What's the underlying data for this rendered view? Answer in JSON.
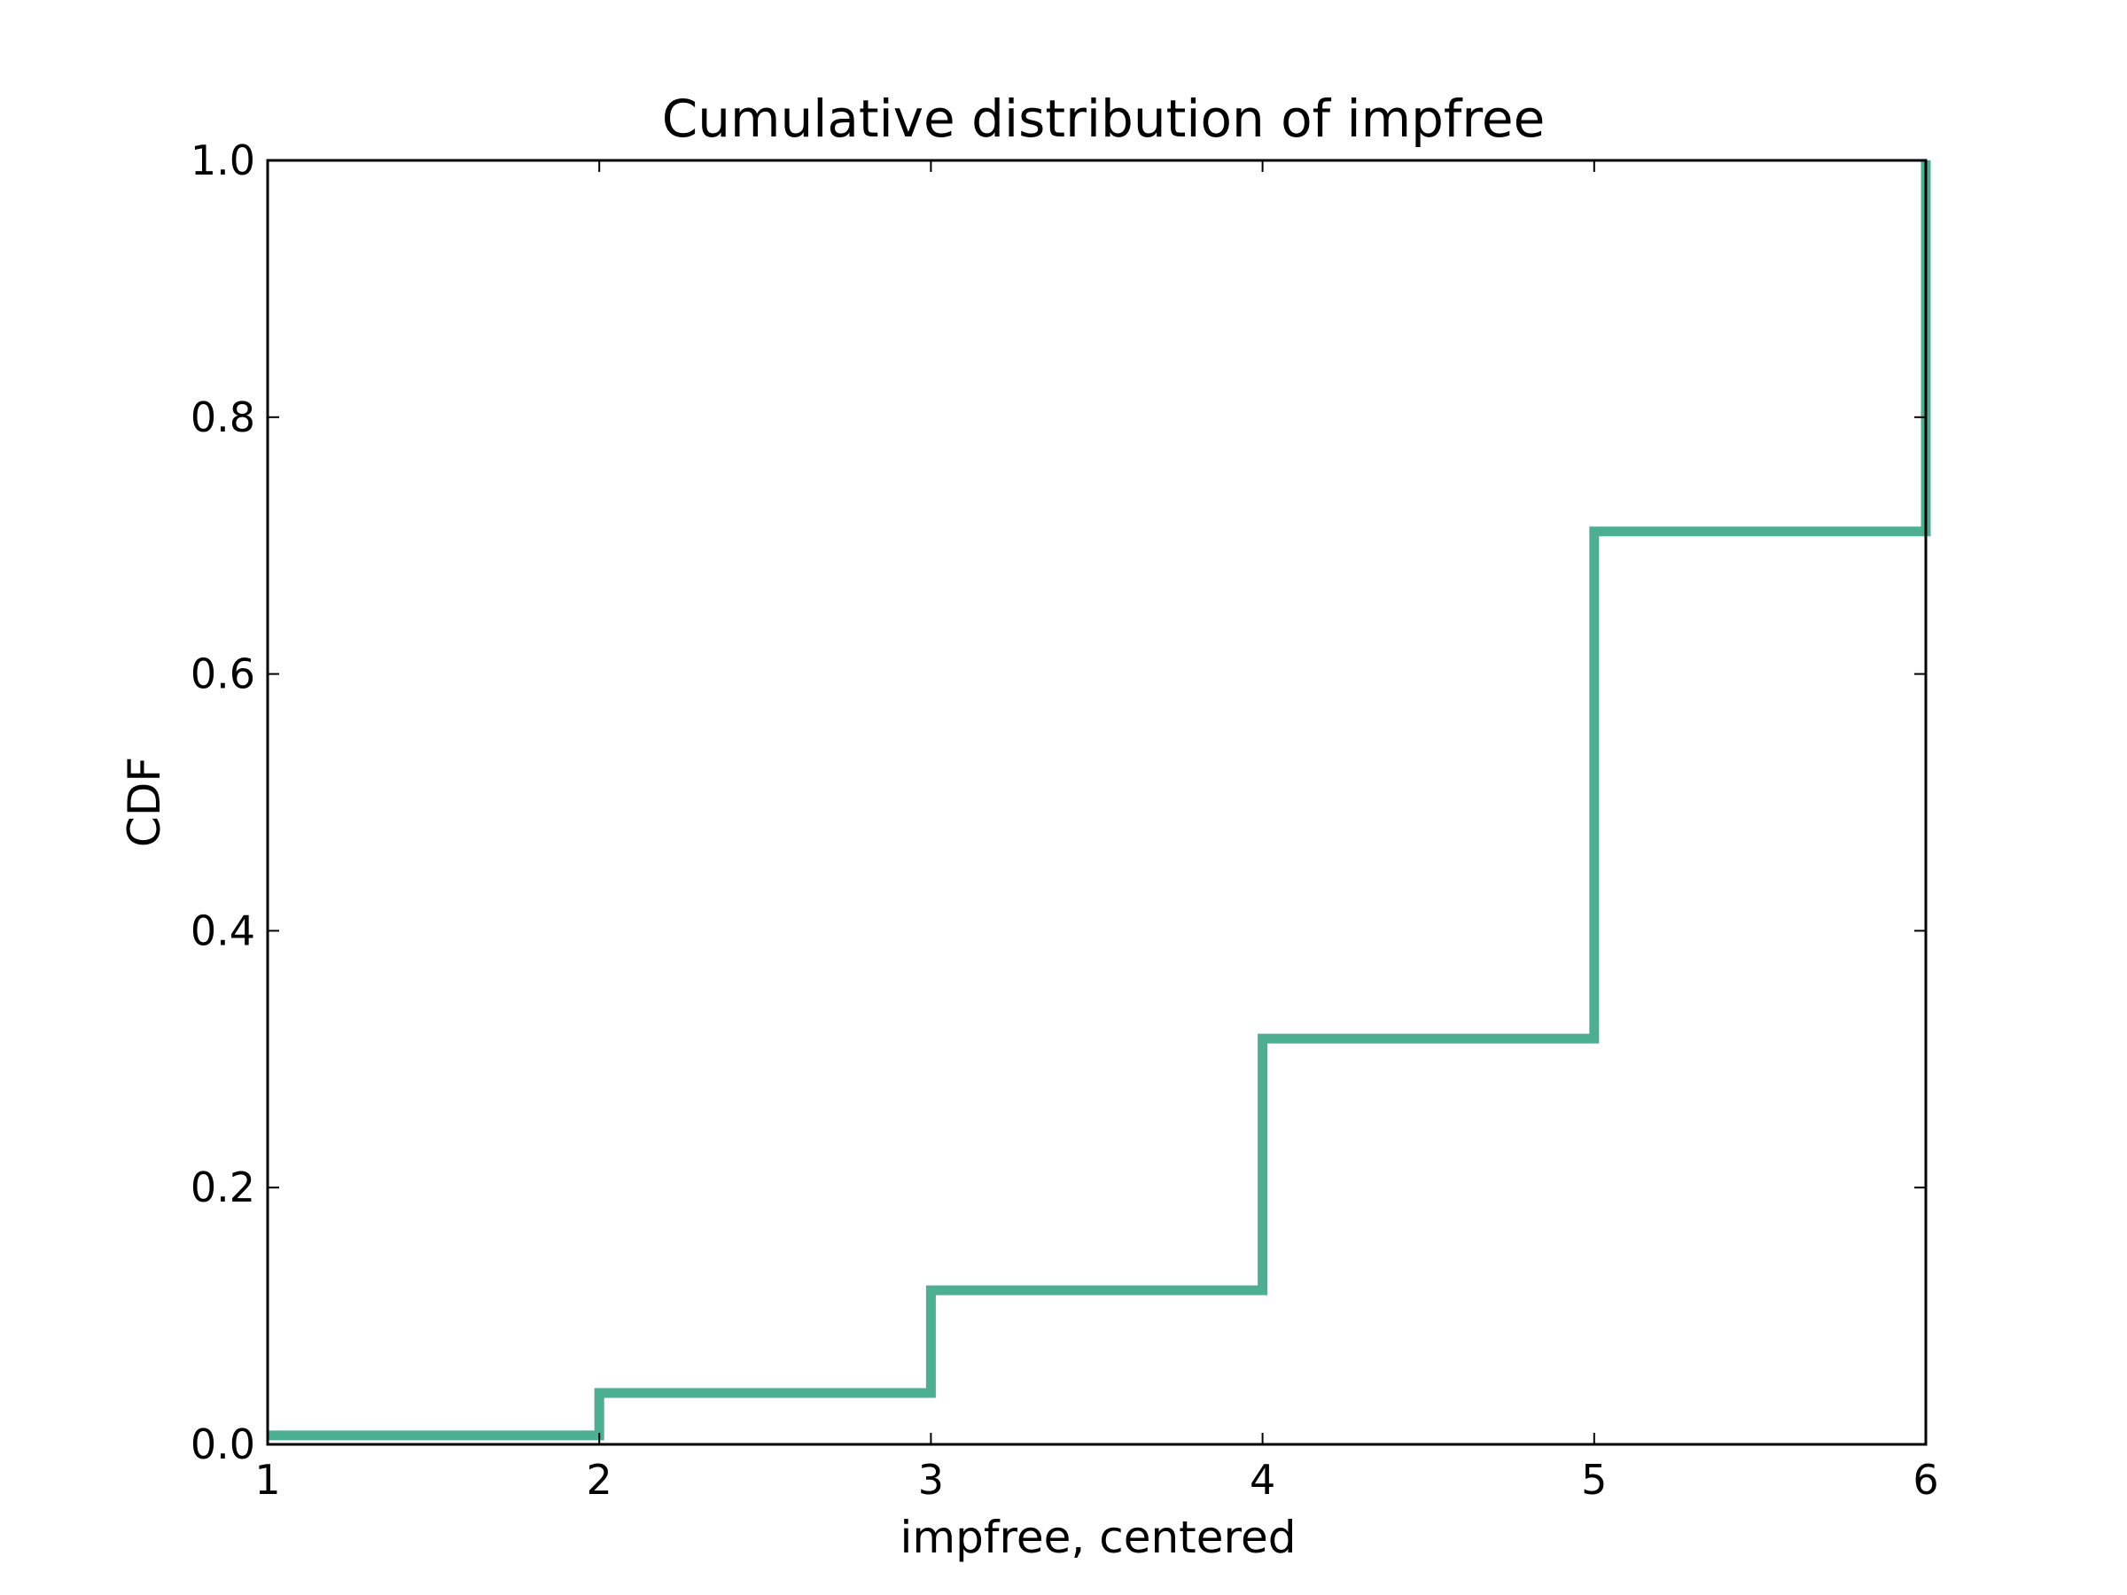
{
  "chart_data": {
    "type": "line",
    "title": "Cumulative distribution of impfree",
    "xlabel": "impfree, centered",
    "ylabel": "CDF",
    "xlim": [
      1,
      6
    ],
    "ylim": [
      0.0,
      1.0
    ],
    "x_ticks": [
      1,
      2,
      3,
      4,
      5,
      6
    ],
    "x_tick_labels": [
      "1",
      "2",
      "3",
      "4",
      "5",
      "6"
    ],
    "y_ticks": [
      0.0,
      0.2,
      0.4,
      0.6,
      0.8,
      1.0
    ],
    "y_tick_labels": [
      "0.0",
      "0.2",
      "0.4",
      "0.6",
      "0.8",
      "1.0"
    ],
    "grid": false,
    "legend": "none",
    "series": [
      {
        "style": "step",
        "color": "#4daf92",
        "points": [
          {
            "x": 1,
            "y": 0.007
          },
          {
            "x": 2,
            "y": 0.007
          },
          {
            "x": 2,
            "y": 0.04
          },
          {
            "x": 3,
            "y": 0.04
          },
          {
            "x": 3,
            "y": 0.12
          },
          {
            "x": 4,
            "y": 0.12
          },
          {
            "x": 4,
            "y": 0.316
          },
          {
            "x": 5,
            "y": 0.316
          },
          {
            "x": 5,
            "y": 0.711
          },
          {
            "x": 6,
            "y": 0.711
          },
          {
            "x": 6,
            "y": 1.0
          }
        ]
      }
    ]
  }
}
